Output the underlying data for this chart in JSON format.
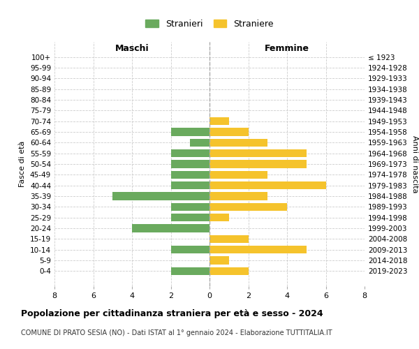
{
  "age_groups": [
    "100+",
    "95-99",
    "90-94",
    "85-89",
    "80-84",
    "75-79",
    "70-74",
    "65-69",
    "60-64",
    "55-59",
    "50-54",
    "45-49",
    "40-44",
    "35-39",
    "30-34",
    "25-29",
    "20-24",
    "15-19",
    "10-14",
    "5-9",
    "0-4"
  ],
  "birth_years": [
    "≤ 1923",
    "1924-1928",
    "1929-1933",
    "1934-1938",
    "1939-1943",
    "1944-1948",
    "1949-1953",
    "1954-1958",
    "1959-1963",
    "1964-1968",
    "1969-1973",
    "1974-1978",
    "1979-1983",
    "1984-1988",
    "1989-1993",
    "1994-1998",
    "1999-2003",
    "2004-2008",
    "2009-2013",
    "2014-2018",
    "2019-2023"
  ],
  "maschi": [
    0,
    0,
    0,
    0,
    0,
    0,
    0,
    2,
    1,
    2,
    2,
    2,
    2,
    5,
    2,
    2,
    4,
    0,
    2,
    0,
    2
  ],
  "femmine": [
    0,
    0,
    0,
    0,
    0,
    0,
    1,
    2,
    3,
    5,
    5,
    3,
    6,
    3,
    4,
    1,
    0,
    2,
    5,
    1,
    2
  ],
  "color_maschi": "#6aaa5e",
  "color_femmine": "#f5c32c",
  "title": "Popolazione per cittadinanza straniera per età e sesso - 2024",
  "subtitle": "COMUNE DI PRATO SESIA (NO) - Dati ISTAT al 1° gennaio 2024 - Elaborazione TUTTITALIA.IT",
  "legend_maschi": "Stranieri",
  "legend_femmine": "Straniere",
  "xlabel_left": "Maschi",
  "xlabel_right": "Femmine",
  "ylabel_left": "Fasce di età",
  "ylabel_right": "Anni di nascita",
  "xlim": 8,
  "background_color": "#ffffff",
  "grid_color": "#cccccc",
  "grid_linestyle": "--",
  "bar_height": 0.75
}
